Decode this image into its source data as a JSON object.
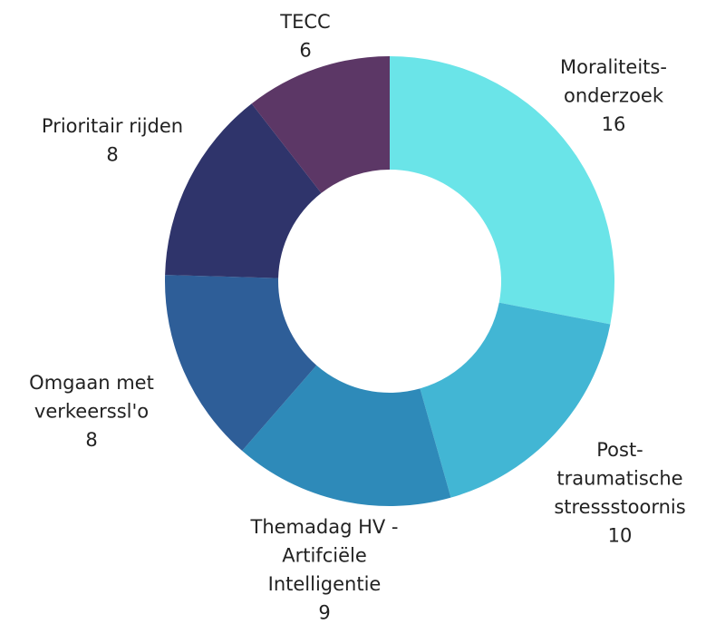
{
  "chart_data": {
    "type": "donut",
    "categories": [
      [
        "Moraliteits-",
        "onderzoek"
      ],
      [
        "Post-",
        "traumatische",
        "stressstoornis"
      ],
      [
        "Themadag HV -",
        "Artifciële",
        "Intelligentie"
      ],
      [
        "Omgaan met",
        "verkeerssl'o"
      ],
      [
        "Prioritair rijden"
      ],
      [
        "TECC"
      ]
    ],
    "values": [
      16,
      10,
      9,
      8,
      8,
      6
    ],
    "colors": [
      "#6ae4e8",
      "#42b6d4",
      "#2e8ab9",
      "#2e5e98",
      "#2f346b",
      "#5c3766"
    ]
  }
}
